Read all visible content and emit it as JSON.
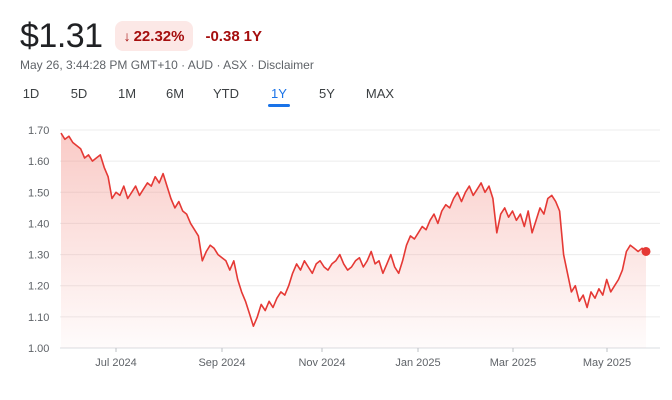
{
  "header": {
    "price": "$1.31",
    "percent_change": "22.32%",
    "abs_change": "-0.38",
    "period": "1Y",
    "down_color": "#a50e0e",
    "arrow_icon": "arrow-down-icon"
  },
  "meta": {
    "timestamp": "May 26, 3:44:28 PM GMT+10",
    "currency": "AUD",
    "exchange": "ASX",
    "disclaimer": "Disclaimer",
    "separator": "·"
  },
  "tabs": [
    {
      "label": "1D",
      "active": false
    },
    {
      "label": "5D",
      "active": false
    },
    {
      "label": "1M",
      "active": false
    },
    {
      "label": "6M",
      "active": false
    },
    {
      "label": "YTD",
      "active": false
    },
    {
      "label": "1Y",
      "active": true
    },
    {
      "label": "5Y",
      "active": false
    },
    {
      "label": "MAX",
      "active": false
    }
  ],
  "chart_data": {
    "type": "area",
    "line_color": "#e53935",
    "ylim": [
      1.0,
      1.7
    ],
    "y_ticks": [
      "1.70",
      "1.60",
      "1.50",
      "1.40",
      "1.30",
      "1.20",
      "1.10",
      "1.00"
    ],
    "x_ticks": [
      "Jul 2024",
      "Sep 2024",
      "Nov 2024",
      "Jan 2025",
      "Mar 2025",
      "May 2025"
    ],
    "grid": true,
    "values": [
      1.69,
      1.67,
      1.68,
      1.66,
      1.65,
      1.64,
      1.61,
      1.62,
      1.6,
      1.61,
      1.62,
      1.58,
      1.55,
      1.48,
      1.5,
      1.49,
      1.52,
      1.48,
      1.5,
      1.52,
      1.49,
      1.51,
      1.53,
      1.52,
      1.55,
      1.53,
      1.56,
      1.52,
      1.48,
      1.45,
      1.47,
      1.44,
      1.43,
      1.4,
      1.38,
      1.36,
      1.28,
      1.31,
      1.33,
      1.32,
      1.3,
      1.29,
      1.28,
      1.25,
      1.28,
      1.22,
      1.18,
      1.15,
      1.11,
      1.07,
      1.1,
      1.14,
      1.12,
      1.15,
      1.13,
      1.16,
      1.18,
      1.17,
      1.2,
      1.24,
      1.27,
      1.25,
      1.28,
      1.26,
      1.24,
      1.27,
      1.28,
      1.26,
      1.25,
      1.27,
      1.28,
      1.3,
      1.27,
      1.25,
      1.26,
      1.28,
      1.29,
      1.26,
      1.28,
      1.31,
      1.27,
      1.28,
      1.24,
      1.27,
      1.3,
      1.26,
      1.24,
      1.28,
      1.33,
      1.36,
      1.35,
      1.37,
      1.39,
      1.38,
      1.41,
      1.43,
      1.4,
      1.44,
      1.46,
      1.45,
      1.48,
      1.5,
      1.47,
      1.5,
      1.52,
      1.49,
      1.51,
      1.53,
      1.5,
      1.52,
      1.48,
      1.37,
      1.43,
      1.45,
      1.42,
      1.44,
      1.41,
      1.43,
      1.39,
      1.44,
      1.37,
      1.41,
      1.45,
      1.43,
      1.48,
      1.49,
      1.47,
      1.44,
      1.3,
      1.24,
      1.18,
      1.2,
      1.15,
      1.17,
      1.13,
      1.18,
      1.16,
      1.19,
      1.17,
      1.22,
      1.18,
      1.2,
      1.22,
      1.25,
      1.31,
      1.33,
      1.32,
      1.31,
      1.32,
      1.31
    ]
  }
}
